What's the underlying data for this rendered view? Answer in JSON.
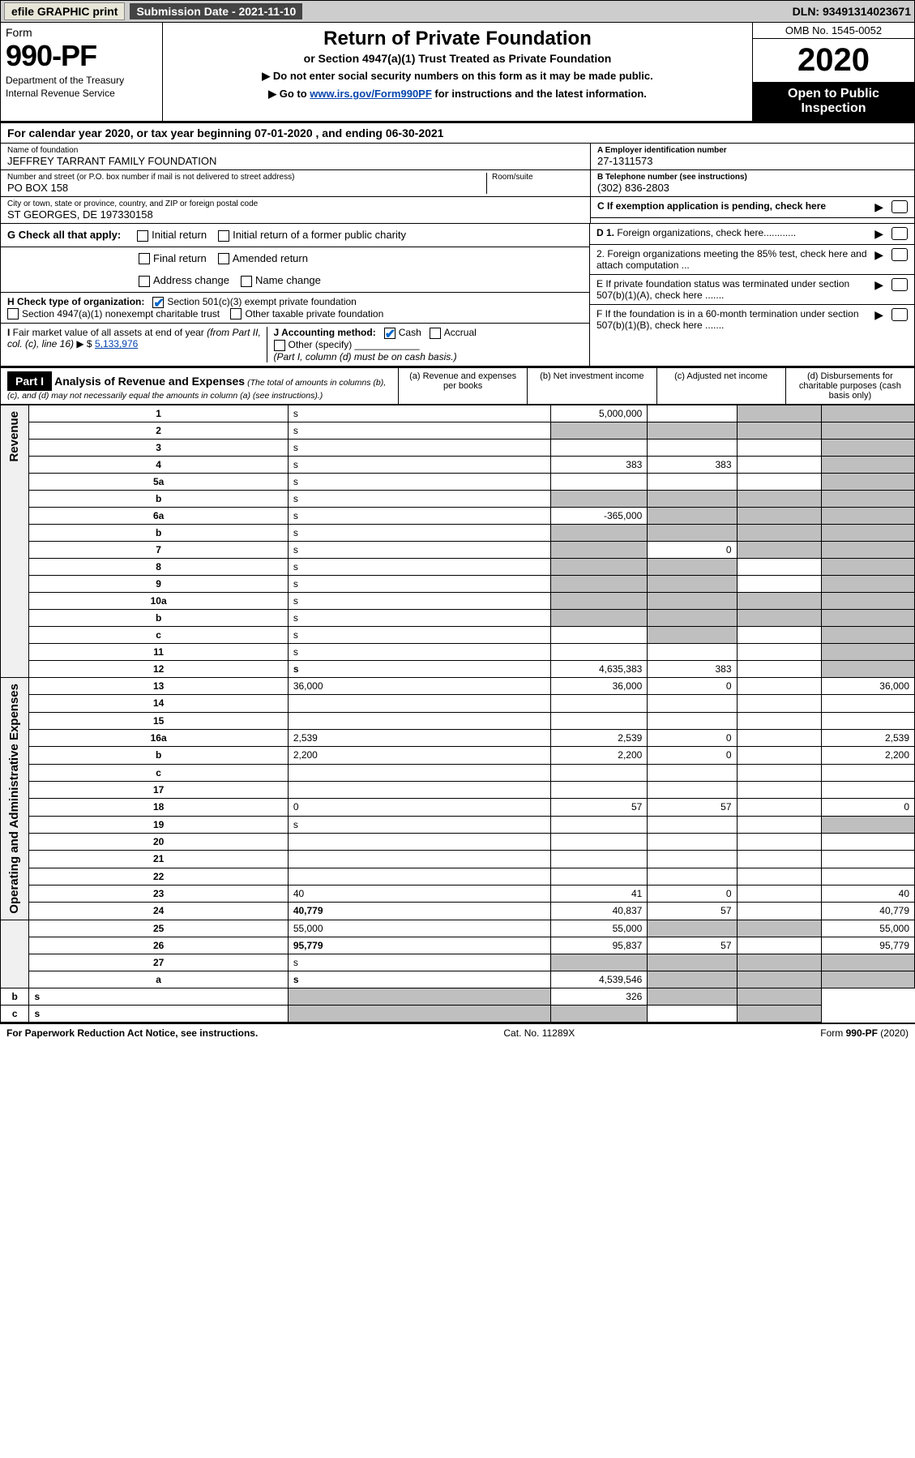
{
  "top_bar": {
    "efile_btn": "efile GRAPHIC print",
    "submission_label": "Submission Date - 2021-11-10",
    "dln": "DLN: 93491314023671"
  },
  "header": {
    "form_label": "Form",
    "form_num": "990-PF",
    "dept": "Department of the Treasury",
    "irs": "Internal Revenue Service",
    "title": "Return of Private Foundation",
    "subtitle": "or Section 4947(a)(1) Trust Treated as Private Foundation",
    "note1": "▶ Do not enter social security numbers on this form as it may be made public.",
    "note2_pre": "▶ Go to ",
    "note2_link": "www.irs.gov/Form990PF",
    "note2_post": " for instructions and the latest information.",
    "omb": "OMB No. 1545-0052",
    "year": "2020",
    "open": "Open to Public Inspection"
  },
  "cal_year": "For calendar year 2020, or tax year beginning 07-01-2020         , and ending 06-30-2021",
  "foundation": {
    "name_lbl": "Name of foundation",
    "name": "JEFFREY TARRANT FAMILY FOUNDATION",
    "addr_lbl": "Number and street (or P.O. box number if mail is not delivered to street address)",
    "addr": "PO BOX 158",
    "room_lbl": "Room/suite",
    "city_lbl": "City or town, state or province, country, and ZIP or foreign postal code",
    "city": "ST GEORGES, DE  197330158",
    "a_lbl": "A Employer identification number",
    "a_val": "27-1311573",
    "b_lbl": "B Telephone number (see instructions)",
    "b_val": "(302) 836-2803",
    "c_lbl": "C If exemption application is pending, check here"
  },
  "g_label": "G Check all that apply:",
  "g_opts": [
    "Initial return",
    "Initial return of a former public charity",
    "Final return",
    "Amended return",
    "Address change",
    "Name change"
  ],
  "h_label": "H Check type of organization:",
  "h_opt1": "Section 501(c)(3) exempt private foundation",
  "h_opt2": "Section 4947(a)(1) nonexempt charitable trust",
  "h_opt3": "Other taxable private foundation",
  "i_label": "I Fair market value of all assets at end of year (from Part II, col. (c), line 16) ▶ $",
  "i_val": "5,133,976",
  "j_label": "J Accounting method:",
  "j_opts": [
    "Cash",
    "Accrual",
    "Other (specify)"
  ],
  "j_note": "(Part I, column (d) must be on cash basis.)",
  "d_label": "D 1. Foreign organizations, check here............",
  "d2_label": "2. Foreign organizations meeting the 85% test, check here and attach computation ...",
  "e_label": "E  If private foundation status was terminated under section 507(b)(1)(A), check here .......",
  "f_label": "F  If the foundation is in a 60-month termination under section 507(b)(1)(B), check here .......",
  "part1": {
    "hdr": "Part I",
    "title": "Analysis of Revenue and Expenses",
    "title_note": "(The total of amounts in columns (b), (c), and (d) may not necessarily equal the amounts in column (a) (see instructions).)",
    "col_a": "(a)   Revenue and expenses per books",
    "col_b": "(b)   Net investment income",
    "col_c": "(c)   Adjusted net income",
    "col_d": "(d)   Disbursements for charitable purposes (cash basis only)"
  },
  "side_labels": {
    "revenue": "Revenue",
    "opex": "Operating and Administrative Expenses"
  },
  "rows": [
    {
      "n": "1",
      "d": "s",
      "a": "5,000,000",
      "b": "",
      "c": "s"
    },
    {
      "n": "2",
      "d": "s",
      "a": "s",
      "b": "s",
      "c": "s"
    },
    {
      "n": "3",
      "d": "s",
      "a": "",
      "b": "",
      "c": ""
    },
    {
      "n": "4",
      "d": "s",
      "a": "383",
      "b": "383",
      "c": ""
    },
    {
      "n": "5a",
      "d": "s",
      "a": "",
      "b": "",
      "c": ""
    },
    {
      "n": "b",
      "d": "s",
      "a": "s",
      "b": "s",
      "c": "s"
    },
    {
      "n": "6a",
      "d": "s",
      "a": "-365,000",
      "b": "s",
      "c": "s"
    },
    {
      "n": "b",
      "d": "s",
      "a": "s",
      "b": "s",
      "c": "s"
    },
    {
      "n": "7",
      "d": "s",
      "a": "s",
      "b": "0",
      "c": "s"
    },
    {
      "n": "8",
      "d": "s",
      "a": "s",
      "b": "s",
      "c": ""
    },
    {
      "n": "9",
      "d": "s",
      "a": "s",
      "b": "s",
      "c": ""
    },
    {
      "n": "10a",
      "d": "s",
      "a": "s",
      "b": "s",
      "c": "s"
    },
    {
      "n": "b",
      "d": "s",
      "a": "s",
      "b": "s",
      "c": "s"
    },
    {
      "n": "c",
      "d": "s",
      "a": "",
      "b": "s",
      "c": ""
    },
    {
      "n": "11",
      "d": "s",
      "a": "",
      "b": "",
      "c": ""
    },
    {
      "n": "12",
      "d": "s",
      "a": "4,635,383",
      "b": "383",
      "c": "",
      "bold": true
    },
    {
      "n": "13",
      "d": "36,000",
      "a": "36,000",
      "b": "0",
      "c": ""
    },
    {
      "n": "14",
      "d": "",
      "a": "",
      "b": "",
      "c": ""
    },
    {
      "n": "15",
      "d": "",
      "a": "",
      "b": "",
      "c": ""
    },
    {
      "n": "16a",
      "d": "2,539",
      "a": "2,539",
      "b": "0",
      "c": ""
    },
    {
      "n": "b",
      "d": "2,200",
      "a": "2,200",
      "b": "0",
      "c": ""
    },
    {
      "n": "c",
      "d": "",
      "a": "",
      "b": "",
      "c": ""
    },
    {
      "n": "17",
      "d": "",
      "a": "",
      "b": "",
      "c": ""
    },
    {
      "n": "18",
      "d": "0",
      "a": "57",
      "b": "57",
      "c": ""
    },
    {
      "n": "19",
      "d": "s",
      "a": "",
      "b": "",
      "c": ""
    },
    {
      "n": "20",
      "d": "",
      "a": "",
      "b": "",
      "c": ""
    },
    {
      "n": "21",
      "d": "",
      "a": "",
      "b": "",
      "c": ""
    },
    {
      "n": "22",
      "d": "",
      "a": "",
      "b": "",
      "c": ""
    },
    {
      "n": "23",
      "d": "40",
      "a": "41",
      "b": "0",
      "c": ""
    },
    {
      "n": "24",
      "d": "40,779",
      "a": "40,837",
      "b": "57",
      "c": "",
      "bold": true
    },
    {
      "n": "25",
      "d": "55,000",
      "a": "55,000",
      "b": "s",
      "c": "s"
    },
    {
      "n": "26",
      "d": "95,779",
      "a": "95,837",
      "b": "57",
      "c": "",
      "bold": true
    },
    {
      "n": "27",
      "d": "s",
      "a": "s",
      "b": "s",
      "c": "s"
    },
    {
      "n": "a",
      "d": "s",
      "a": "4,539,546",
      "b": "s",
      "c": "s",
      "bold": true
    },
    {
      "n": "b",
      "d": "s",
      "a": "s",
      "b": "326",
      "c": "s",
      "bold": true
    },
    {
      "n": "c",
      "d": "s",
      "a": "s",
      "b": "s",
      "c": "",
      "bold": true
    }
  ],
  "footer": {
    "left": "For Paperwork Reduction Act Notice, see instructions.",
    "mid": "Cat. No. 11289X",
    "right": "Form 990-PF (2020)"
  }
}
